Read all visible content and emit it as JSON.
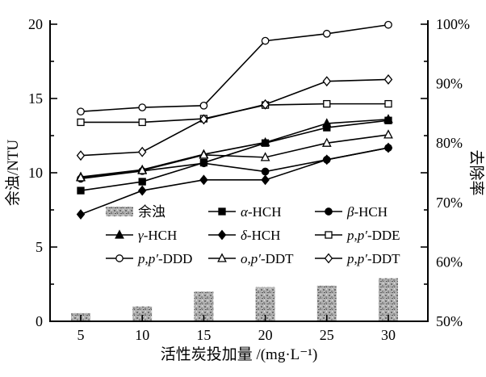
{
  "chart_data": {
    "type": "combo: bar (left axis, residual turbidity) + 8 marker-line series (right axis, removal rate %)",
    "x": [
      5,
      10,
      15,
      20,
      25,
      30
    ],
    "xlabel": "活性炭投加量 /(mg·L⁻¹)",
    "left_axis": {
      "label": "余浊/NTU",
      "range": [
        0,
        20
      ],
      "major_ticks": [
        "0",
        "5",
        "10",
        "15",
        "20"
      ],
      "minor_tick_step": 2.5
    },
    "right_axis": {
      "label": "去除率",
      "range_pct": [
        50,
        100
      ],
      "major_ticks": [
        "50%",
        "60%",
        "70%",
        "80%",
        "90%",
        "100%"
      ],
      "minor_tick_step_pct": 5
    },
    "bars": {
      "name": "余浊",
      "axis": "left",
      "values_ntu": [
        0.55,
        1.0,
        2.0,
        2.3,
        2.4,
        2.9
      ],
      "fill": "speckled-gray"
    },
    "series": [
      {
        "name": "α-HCH",
        "marker": "filled-square",
        "values_pct": [
          72.0,
          73.5,
          76.7,
          80.0,
          82.6,
          83.8
        ]
      },
      {
        "name": "β-HCH",
        "marker": "filled-circle",
        "values_pct": [
          74.0,
          75.3,
          76.6,
          75.2,
          77.2,
          79.2
        ]
      },
      {
        "name": "γ-HCH",
        "marker": "filled-triangle",
        "values_pct": [
          74.3,
          75.5,
          78.1,
          80.1,
          83.3,
          84.0
        ]
      },
      {
        "name": "δ-HCH",
        "marker": "filled-diamond",
        "values_pct": [
          68.0,
          72.0,
          73.8,
          73.8,
          77.2,
          79.2
        ]
      },
      {
        "name": "p,p′-DDE",
        "marker": "open-square",
        "values_pct": [
          83.5,
          83.5,
          84.1,
          86.4,
          86.6,
          86.6
        ]
      },
      {
        "name": "p,p′-DDD",
        "marker": "open-circle",
        "values_pct": [
          85.3,
          86.0,
          86.3,
          97.2,
          98.4,
          99.9
        ]
      },
      {
        "name": "o,p′-DDT",
        "marker": "open-triangle",
        "values_pct": [
          74.2,
          75.4,
          78.0,
          77.6,
          80.0,
          81.4
        ]
      },
      {
        "name": "p,p′-DDT",
        "marker": "open-diamond",
        "values_pct": [
          77.9,
          78.5,
          84.0,
          86.5,
          90.4,
          90.7
        ]
      }
    ],
    "legend": {
      "position": "inside plot, lower middle, 3 columns x 3 rows, no frame",
      "entries": [
        {
          "label": "余浊",
          "swatch": "bar"
        },
        {
          "label": "α-HCH",
          "swatch": "filled-square"
        },
        {
          "label": "β-HCH",
          "swatch": "filled-circle"
        },
        {
          "label": "γ-HCH",
          "swatch": "filled-triangle"
        },
        {
          "label": "δ-HCH",
          "swatch": "filled-diamond"
        },
        {
          "label": "p,p′-DDE",
          "swatch": "open-square"
        },
        {
          "label": "p,p′-DDD",
          "swatch": "open-circle"
        },
        {
          "label": "o,p′-DDT",
          "swatch": "open-triangle"
        },
        {
          "label": "p,p′-DDT",
          "swatch": "open-diamond"
        }
      ]
    },
    "grid": "off",
    "colors": {
      "line": "#000000",
      "marker_fill_open": "#ffffff",
      "bar_fill_base": "#b3b3b3",
      "background": "#ffffff"
    }
  }
}
